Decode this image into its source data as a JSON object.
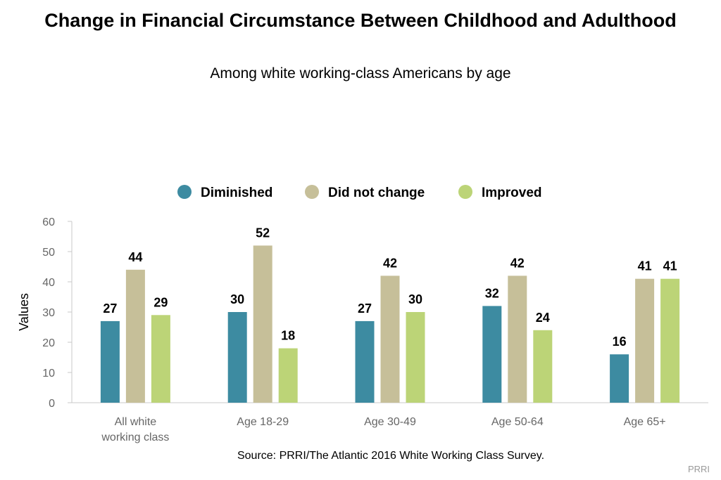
{
  "chart_data": {
    "type": "bar",
    "title": "Change in Financial Circumstance Between Childhood and Adulthood",
    "subtitle": "Among white working-class Americans by age",
    "ylabel": "Values",
    "ylim": [
      0,
      60
    ],
    "yticks": [
      0,
      10,
      20,
      30,
      40,
      50,
      60
    ],
    "categories": [
      "All white working class",
      "Age 18-29",
      "Age 30-49",
      "Age 50-64",
      "Age 65+"
    ],
    "series": [
      {
        "name": "Diminished",
        "color": "#3d8ba1",
        "values": [
          27,
          30,
          27,
          32,
          16
        ]
      },
      {
        "name": "Did not change",
        "color": "#c6bf99",
        "values": [
          44,
          52,
          42,
          42,
          41
        ]
      },
      {
        "name": "Improved",
        "color": "#bcd477",
        "values": [
          29,
          18,
          30,
          24,
          41
        ]
      }
    ],
    "legend_position": "top-center",
    "grid": false
  },
  "source": "Source: PRRI/The Atlantic 2016 White Working Class Survey.",
  "credit": "PRRI"
}
